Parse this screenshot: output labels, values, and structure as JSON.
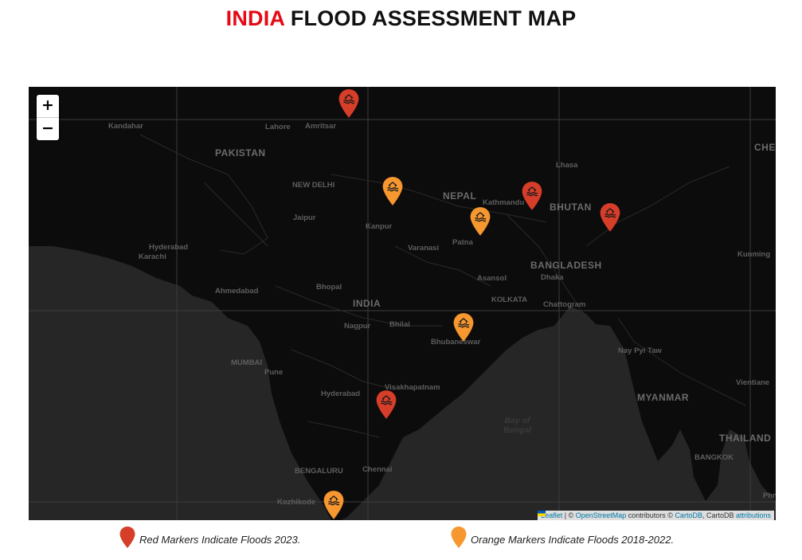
{
  "title": {
    "accent": "INDIA",
    "rest": "FLOOD ASSESSMENT MAP"
  },
  "zoom": {
    "in_label": "+",
    "out_label": "−"
  },
  "colors": {
    "title_accent": "#e50914",
    "red_marker": "#d63e2a",
    "orange_marker": "#f69730",
    "map_bg": "#111111"
  },
  "map_labels": {
    "countries": [
      "PAKISTAN",
      "NEPAL",
      "BHUTAN",
      "BANGLADESH",
      "INDIA",
      "MYANMAR",
      "THAILAND",
      "CHEN"
    ],
    "cities": [
      "Kandahar",
      "Lahore",
      "Amritsar",
      "NEW DELHI",
      "Jaipur",
      "Hyderabad",
      "Karachi",
      "Ahmedabad",
      "Bhopal",
      "Kanpur",
      "Varanasi",
      "Patna",
      "Kathmandu",
      "Lhasa",
      "Asansol",
      "Dhaka",
      "KOLKATA",
      "Chattogram",
      "Kunming",
      "Nagpur",
      "Bhilai",
      "Bhubaneswar",
      "Nay Pyi Taw",
      "MUMBAI",
      "Pune",
      "Hyderabad",
      "Visakhapatnam",
      "Vientiane",
      "BENGALURU",
      "Chennai",
      "BANGKOK",
      "Kozhikode",
      "Phn"
    ],
    "water": [
      "Bay of",
      "Bengal"
    ]
  },
  "markers": [
    {
      "color": "red",
      "icon": "flood-icon"
    },
    {
      "color": "orange",
      "icon": "flood-icon"
    },
    {
      "color": "red",
      "icon": "flood-icon"
    },
    {
      "color": "orange",
      "icon": "flood-icon"
    },
    {
      "color": "red",
      "icon": "flood-icon"
    },
    {
      "color": "orange",
      "icon": "flood-icon"
    },
    {
      "color": "red",
      "icon": "flood-icon"
    },
    {
      "color": "orange",
      "icon": "flood-icon"
    }
  ],
  "attribution": {
    "leaflet": "Leaflet",
    "sep": " | © ",
    "osm": "OpenStreetMap",
    "contrib": " contributors © ",
    "carto": "CartoDB",
    "carto2": ", CartoDB ",
    "attributions": "attributions"
  },
  "legend": {
    "red": "Red Markers Indicate Floods 2023.",
    "orange": "Orange Markers Indicate Floods 2018-2022."
  }
}
